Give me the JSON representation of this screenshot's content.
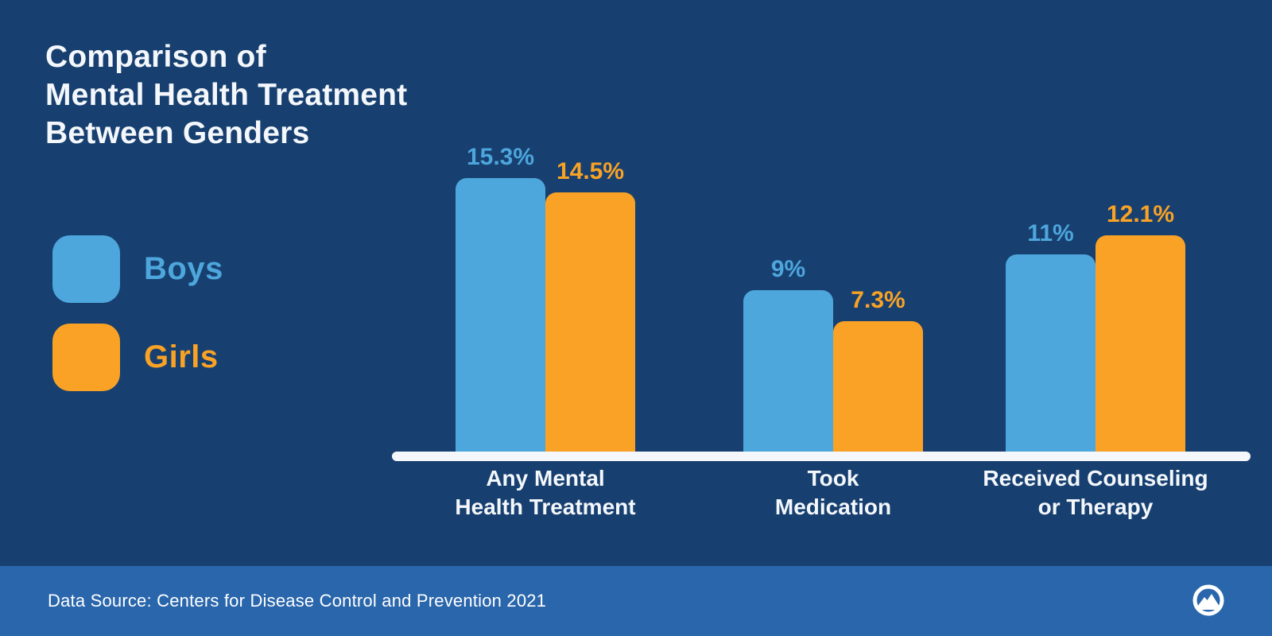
{
  "title": {
    "lines": [
      "Comparison of",
      "Mental Health Treatment",
      "Between Genders"
    ],
    "text": "Comparison of Mental Health Treatment Between Genders"
  },
  "legend": {
    "items": [
      {
        "label": "Boys",
        "color": "#4DA6DC"
      },
      {
        "label": "Girls",
        "color": "#F9A225"
      }
    ]
  },
  "chart_data": {
    "type": "bar",
    "categories": [
      "Any Mental\nHealth Treatment",
      "Took\nMedication",
      "Received Counseling\nor Therapy"
    ],
    "series": [
      {
        "name": "Boys",
        "color": "#4DA6DC",
        "values": [
          15.3,
          9,
          11
        ],
        "labels": [
          "15.3%",
          "9%",
          "11%"
        ]
      },
      {
        "name": "Girls",
        "color": "#F9A225",
        "values": [
          14.5,
          7.3,
          12.1
        ],
        "labels": [
          "14.5%",
          "7.3%",
          "12.1%"
        ]
      }
    ],
    "value_suffix": "%",
    "ylim": [
      0,
      17
    ],
    "grid": false,
    "y_axis_shown": false,
    "legend_position": "left",
    "baseline_color": "#F4F7FB"
  },
  "footer": {
    "source_text": "Data Source: Centers for Disease Control and Prevention 2021",
    "logo": "mountain-logo"
  },
  "colors": {
    "background": "#174070",
    "footer_background": "#2A66AC",
    "ink": "#F4F7FB",
    "boys": "#4DA6DC",
    "girls": "#F9A225"
  }
}
